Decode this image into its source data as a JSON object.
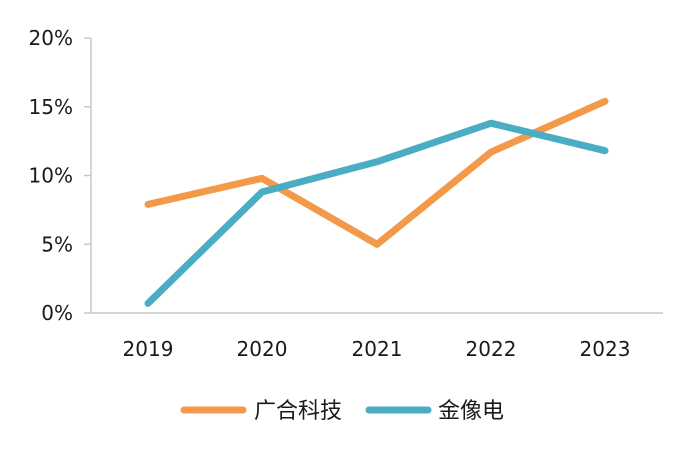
{
  "chart_data": {
    "type": "line",
    "title": "",
    "xlabel": "",
    "ylabel": "",
    "categories": [
      "2019",
      "2020",
      "2021",
      "2022",
      "2023"
    ],
    "series": [
      {
        "name": "广合科技",
        "color": "#F39A4A",
        "values": [
          7.9,
          9.8,
          5.0,
          11.7,
          15.4
        ]
      },
      {
        "name": "金像电",
        "color": "#4AADC4",
        "values": [
          0.7,
          8.8,
          11.0,
          13.8,
          11.8
        ]
      }
    ],
    "y_ticks": [
      "0%",
      "5%",
      "10%",
      "15%",
      "20%"
    ],
    "ylim": [
      0,
      20
    ],
    "y_unit": "%",
    "grid": false,
    "legend_position": "bottom"
  }
}
